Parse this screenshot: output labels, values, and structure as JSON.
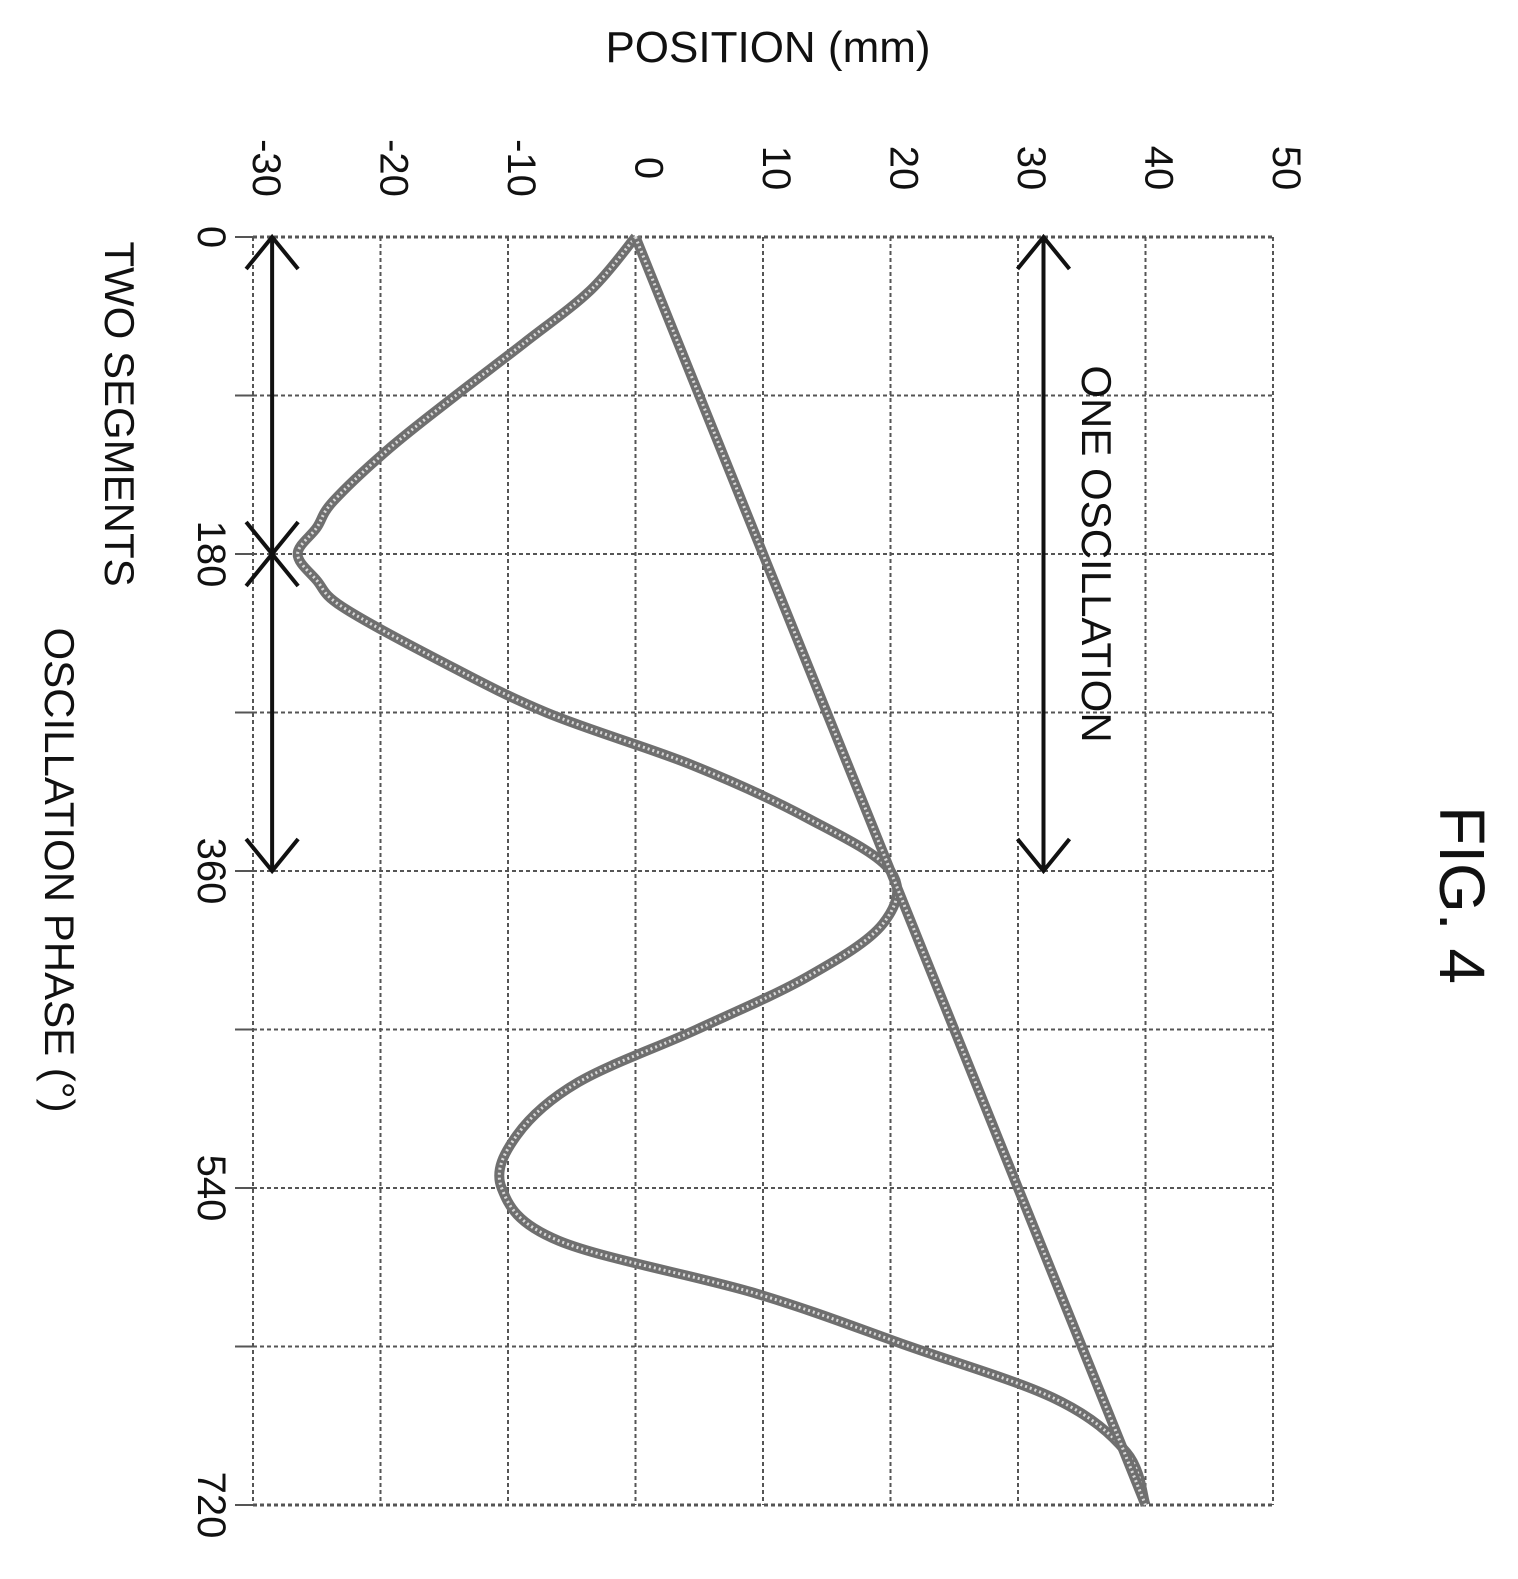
{
  "figure_label": "FIG. 4",
  "chart_data": {
    "type": "line",
    "orientation": "rotated-90",
    "xlabel": "OSCILLATION PHASE (°)",
    "ylabel": "POSITION (mm)",
    "xlim": [
      0,
      720
    ],
    "ylim": [
      -30,
      50
    ],
    "x_ticks": [
      "0",
      "180",
      "360",
      "540",
      "720"
    ],
    "y_ticks": [
      "-30",
      "-20",
      "-10",
      "0",
      "10",
      "20",
      "30",
      "40",
      "50"
    ],
    "grid": true,
    "series": [
      {
        "x": [
          0,
          30,
          60,
          90,
          120,
          150,
          165,
          180,
          195,
          210,
          240,
          270,
          300,
          330,
          360,
          390,
          420,
          450,
          480,
          510,
          540,
          570,
          600,
          630,
          660,
          690,
          720
        ],
        "values": [
          0,
          -3.5,
          -8.7,
          -14.1,
          -19.3,
          -23.7,
          -25,
          -26.5,
          -25,
          -23,
          -15.5,
          -7,
          4.5,
          13.5,
          20,
          19.4,
          13.5,
          4.8,
          -4.5,
          -9.3,
          -10.5,
          -6,
          9.5,
          21.5,
          33,
          38.5,
          40
        ]
      },
      {
        "x": [
          0,
          720
        ],
        "values": [
          0,
          40
        ]
      }
    ],
    "annotations": [
      {
        "text": "ONE OSCILLATION",
        "x_range": [
          0,
          360
        ],
        "y": 32
      },
      {
        "text": "TWO SEGMENTS",
        "x_range": [
          0,
          360
        ],
        "y": -28.5
      }
    ]
  }
}
